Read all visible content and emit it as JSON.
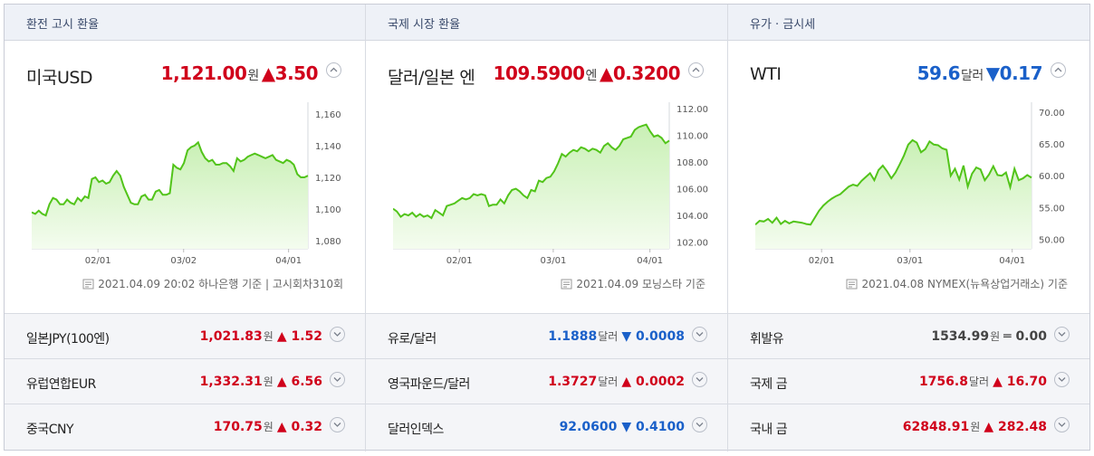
{
  "columns": [
    {
      "header": "환전 고시 환율",
      "main": {
        "name": "미국USD",
        "price": "1,121.00",
        "unit": "원",
        "change": "▲3.50",
        "direction": "up",
        "source": "2021.04.09 20:02 하나은행 기준 | 고시회차310회"
      },
      "rows": [
        {
          "name": "일본JPY(100엔)",
          "value": "1,021.83",
          "unit": "원",
          "change": "▲ 1.52",
          "direction": "up"
        },
        {
          "name": "유럽연합EUR",
          "value": "1,332.31",
          "unit": "원",
          "change": "▲ 6.56",
          "direction": "up"
        },
        {
          "name": "중국CNY",
          "value": "170.75",
          "unit": "원",
          "change": "▲ 0.32",
          "direction": "up"
        }
      ]
    },
    {
      "header": "국제 시장 환율",
      "main": {
        "name": "달러/일본 엔",
        "price": "109.5900",
        "unit": "엔",
        "change": "▲0.3200",
        "direction": "up",
        "source": "2021.04.09 모닝스타 기준"
      },
      "rows": [
        {
          "name": "유로/달러",
          "value": "1.1888",
          "unit": "달러",
          "change": "▼ 0.0008",
          "direction": "down"
        },
        {
          "name": "영국파운드/달러",
          "value": "1.3727",
          "unit": "달러",
          "change": "▲ 0.0002",
          "direction": "up"
        },
        {
          "name": "달러인덱스",
          "value": "92.0600",
          "unit": "",
          "change": "▼ 0.4100",
          "direction": "down"
        }
      ]
    },
    {
      "header": "유가 · 금시세",
      "main": {
        "name": "WTI",
        "price": "59.6",
        "unit": "달러",
        "change": "▼0.17",
        "direction": "down",
        "source": "2021.04.08 NYMEX(뉴욕상업거래소) 기준"
      },
      "rows": [
        {
          "name": "휘발유",
          "value": "1534.99",
          "unit": "원",
          "change": "═ 0.00",
          "direction": "eq"
        },
        {
          "name": "국제 금",
          "value": "1756.8",
          "unit": "달러",
          "change": "▲ 16.70",
          "direction": "up"
        },
        {
          "name": "국내 금",
          "value": "62848.91",
          "unit": "원",
          "change": "▲ 282.48",
          "direction": "up"
        }
      ]
    }
  ],
  "colors": {
    "up": "#d0021b",
    "down": "#1a60c9",
    "line": "#52c41a",
    "fill_top": "#c9f0b5",
    "fill_bottom": "#f4fcef"
  },
  "chart_data": [
    {
      "type": "area",
      "yticks": [
        "1,160",
        "1,140",
        "1,120",
        "1,100",
        "1,080"
      ],
      "xticks": [
        "02/01",
        "03/02",
        "04/01"
      ],
      "ylim": [
        1075,
        1165
      ],
      "values": [
        1098,
        1097,
        1099,
        1097,
        1096,
        1103,
        1107,
        1106,
        1103,
        1103,
        1106,
        1104,
        1103,
        1107,
        1105,
        1108,
        1107,
        1119,
        1120,
        1117,
        1118,
        1116,
        1117,
        1121,
        1124,
        1121,
        1114,
        1109,
        1104,
        1103,
        1103,
        1108,
        1109,
        1106,
        1106,
        1111,
        1112,
        1109,
        1109,
        1110,
        1128,
        1126,
        1125,
        1129,
        1137,
        1139,
        1140,
        1142,
        1136,
        1132,
        1130,
        1131,
        1128,
        1128,
        1129,
        1129,
        1127,
        1124,
        1132,
        1130,
        1131,
        1133,
        1134,
        1135,
        1134,
        1133,
        1132,
        1133,
        1134,
        1131,
        1130,
        1129,
        1131,
        1130,
        1128,
        1122,
        1120,
        1120,
        1121
      ]
    },
    {
      "type": "area",
      "yticks": [
        "112.00",
        "110.00",
        "108.00",
        "106.00",
        "104.00",
        "102.00"
      ],
      "xticks": [
        "02/01",
        "03/01",
        "04/01"
      ],
      "ylim": [
        101.5,
        112.2
      ],
      "values": [
        104.5,
        104.3,
        103.9,
        104.1,
        104.0,
        104.2,
        103.9,
        104.1,
        103.9,
        104.0,
        103.8,
        104.4,
        104.2,
        104.0,
        104.7,
        104.8,
        104.9,
        105.1,
        105.3,
        105.2,
        105.3,
        105.6,
        105.5,
        105.6,
        105.5,
        104.7,
        104.8,
        104.8,
        105.2,
        104.9,
        105.5,
        105.9,
        106.0,
        105.8,
        105.5,
        105.3,
        105.9,
        105.8,
        106.6,
        106.5,
        106.8,
        106.9,
        107.3,
        107.9,
        108.6,
        108.4,
        108.7,
        108.9,
        108.8,
        109.1,
        109.0,
        108.8,
        109.0,
        108.9,
        108.7,
        109.2,
        109.4,
        109.1,
        108.9,
        109.2,
        109.7,
        109.8,
        109.9,
        110.4,
        110.6,
        110.7,
        110.8,
        110.3,
        109.9,
        110.0,
        109.8,
        109.4,
        109.6
      ]
    },
    {
      "type": "area",
      "yticks": [
        "70.00",
        "65.00",
        "60.00",
        "55.00",
        "50.00"
      ],
      "xticks": [
        "02/01",
        "03/01",
        "04/01"
      ],
      "ylim": [
        48.5,
        71
      ],
      "values": [
        52.3,
        52.9,
        52.8,
        53.2,
        52.6,
        53.4,
        52.4,
        52.9,
        52.5,
        52.8,
        52.7,
        52.6,
        52.4,
        52.3,
        53.4,
        54.5,
        55.3,
        55.9,
        56.4,
        56.8,
        57.1,
        57.7,
        58.3,
        58.6,
        58.4,
        59.2,
        59.8,
        60.4,
        59.3,
        60.9,
        61.6,
        60.7,
        59.6,
        60.5,
        61.8,
        63.2,
        64.9,
        65.6,
        65.2,
        63.7,
        64.2,
        65.4,
        64.9,
        64.8,
        64.3,
        64.1,
        60.0,
        61.1,
        59.4,
        61.6,
        58.3,
        60.3,
        61.3,
        61.0,
        59.3,
        60.2,
        61.5,
        60.1,
        60.0,
        60.5,
        58.2,
        61.1,
        59.3,
        59.6,
        60.1,
        59.7
      ]
    }
  ]
}
